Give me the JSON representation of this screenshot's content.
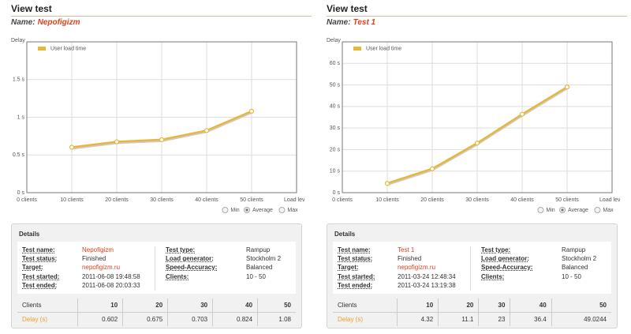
{
  "panels": [
    {
      "heading": "View test",
      "name_label": "Name:",
      "name": "Nepofigizm",
      "options": [
        "Min",
        "Average",
        "Max"
      ],
      "selected_option": "Average",
      "details": {
        "title": "Details",
        "left": [
          [
            "Test name:",
            "Nepofigizm"
          ],
          [
            "Test status:",
            "Finished"
          ],
          [
            "Target:",
            "nepofigizm.ru"
          ],
          [
            "Test started:",
            "2011-06-08 19:48:58"
          ],
          [
            "Test ended:",
            "2011-06-08 20:03:33"
          ]
        ],
        "right": [
          [
            "Test type:",
            "Rampup"
          ],
          [
            "Load generator:",
            "Stockholm 2"
          ],
          [
            "Speed-Accuracy:",
            "Balanced"
          ],
          [
            "Clients:",
            "10 - 50"
          ]
        ],
        "table": {
          "header": [
            "Clients",
            "10",
            "20",
            "30",
            "40",
            "50"
          ],
          "rows": [
            [
              "Delay (s)",
              "0.602",
              "0.675",
              "0.703",
              "0.824",
              "1.08"
            ]
          ]
        }
      }
    },
    {
      "heading": "View test",
      "name_label": "Name:",
      "name": "Test 1",
      "options": [
        "Min",
        "Average",
        "Max"
      ],
      "selected_option": "Average",
      "details": {
        "title": "Details",
        "left": [
          [
            "Test name:",
            "Test 1"
          ],
          [
            "Test status:",
            "Finished"
          ],
          [
            "Target:",
            "nepofigizm.ru"
          ],
          [
            "Test started:",
            "2011-03-24 12:48:34"
          ],
          [
            "Test ended:",
            "2011-03-24 13:19:38"
          ]
        ],
        "right": [
          [
            "Test type:",
            "Rampup"
          ],
          [
            "Load generator:",
            "Stockholm 2"
          ],
          [
            "Speed-Accuracy:",
            "Balanced"
          ],
          [
            "Clients:",
            "10 - 50"
          ]
        ],
        "table": {
          "header": [
            "Clients",
            "10",
            "20",
            "30",
            "40",
            "50"
          ],
          "rows": [
            [
              "Delay (s)",
              "4.32",
              "11.1",
              "23",
              "36.4",
              "49.0244"
            ]
          ]
        }
      }
    }
  ],
  "chart_data": [
    {
      "type": "line",
      "y_label": "Delay",
      "grid": true,
      "x": [
        10,
        20,
        30,
        40,
        50
      ],
      "series": [
        {
          "name": "User load time",
          "color": "#e8b63a",
          "values": [
            0.602,
            0.675,
            0.703,
            0.824,
            1.08
          ]
        }
      ],
      "xlim": [
        0,
        60
      ],
      "xticks": [
        {
          "value": 0,
          "label": "0 clients"
        },
        {
          "value": 10,
          "label": "10 clients"
        },
        {
          "value": 20,
          "label": "20 clients"
        },
        {
          "value": 30,
          "label": "30 clients"
        },
        {
          "value": 40,
          "label": "40 clients"
        },
        {
          "value": 50,
          "label": "50 clients"
        },
        {
          "value": 60,
          "label": "Load level"
        }
      ],
      "ylim": [
        0,
        2
      ],
      "yticks": [
        {
          "value": 0,
          "label": "0 s"
        },
        {
          "value": 0.5,
          "label": "0.5 s"
        },
        {
          "value": 1,
          "label": "1 s"
        },
        {
          "value": 1.5,
          "label": "1.5 s"
        }
      ]
    },
    {
      "type": "line",
      "y_label": "Delay",
      "grid": true,
      "x": [
        10,
        20,
        30,
        40,
        50
      ],
      "series": [
        {
          "name": "User load time",
          "color": "#e8b63a",
          "values": [
            4.32,
            11.1,
            23,
            36.4,
            49.0244
          ]
        }
      ],
      "xlim": [
        0,
        60
      ],
      "xticks": [
        {
          "value": 0,
          "label": "0 clients"
        },
        {
          "value": 10,
          "label": "10 clients"
        },
        {
          "value": 20,
          "label": "20 clients"
        },
        {
          "value": 30,
          "label": "30 clients"
        },
        {
          "value": 40,
          "label": "40 clients"
        },
        {
          "value": 50,
          "label": "50 clients"
        },
        {
          "value": 60,
          "label": "Load level"
        }
      ],
      "ylim": [
        0,
        70
      ],
      "yticks": [
        {
          "value": 0,
          "label": "0 s"
        },
        {
          "value": 10,
          "label": "10 s"
        },
        {
          "value": 20,
          "label": "20 s"
        },
        {
          "value": 30,
          "label": "30 s"
        },
        {
          "value": 40,
          "label": "40 s"
        },
        {
          "value": 50,
          "label": "50 s"
        },
        {
          "value": 60,
          "label": "60 s"
        }
      ]
    }
  ]
}
